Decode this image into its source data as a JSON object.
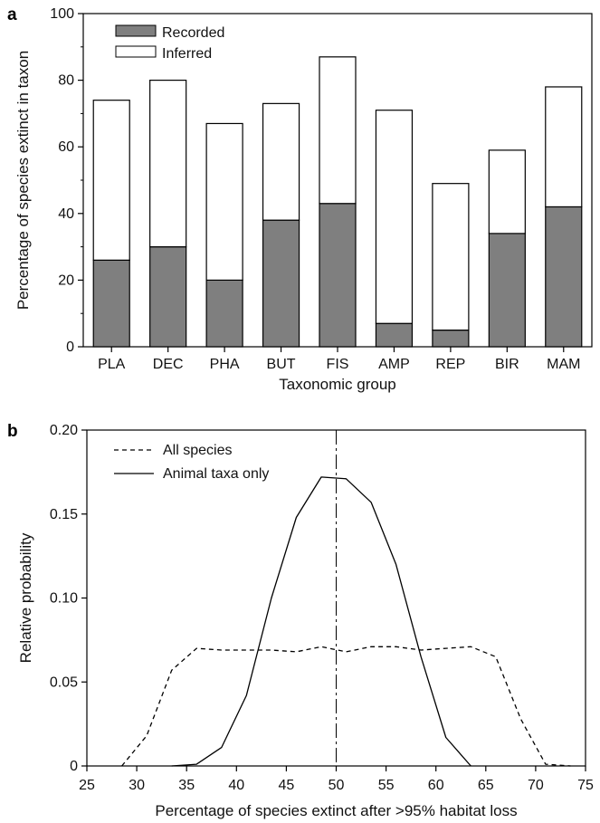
{
  "chart_data": [
    {
      "panel_label": "a",
      "type": "bar",
      "stacked": true,
      "categories": [
        "PLA",
        "DEC",
        "PHA",
        "BUT",
        "FIS",
        "AMP",
        "REP",
        "BIR",
        "MAM"
      ],
      "series": [
        {
          "name": "Recorded",
          "values": [
            26,
            30,
            20,
            38,
            43,
            7,
            5,
            34,
            42
          ],
          "color": "#7f7f7f"
        },
        {
          "name": "Inferred",
          "values": [
            48,
            50,
            47,
            35,
            44,
            64,
            44,
            25,
            36
          ],
          "color": "#ffffff"
        }
      ],
      "totals": [
        74,
        80,
        67,
        73,
        87,
        71,
        49,
        59,
        78
      ],
      "xlabel": "Taxonomic group",
      "ylabel": "Percentage of species extinct in taxon",
      "ylim": [
        0,
        100
      ],
      "yticks": [
        0,
        20,
        40,
        60,
        80,
        100
      ],
      "legend_position": "top-left",
      "grid": false
    },
    {
      "panel_label": "b",
      "type": "line",
      "series": [
        {
          "name": "All species",
          "style": "dashed",
          "x": [
            28.5,
            31,
            33.5,
            36,
            38.5,
            41,
            43.5,
            46,
            48.5,
            51,
            53.5,
            56,
            58.5,
            61,
            63.5,
            66,
            68.5,
            71,
            73.5
          ],
          "y": [
            0.0,
            0.018,
            0.057,
            0.07,
            0.069,
            0.069,
            0.069,
            0.068,
            0.071,
            0.068,
            0.071,
            0.071,
            0.069,
            0.07,
            0.071,
            0.065,
            0.028,
            0.001,
            0.0
          ]
        },
        {
          "name": "Animal taxa only",
          "style": "solid",
          "x": [
            33.5,
            36,
            38.5,
            41,
            43.5,
            46,
            48.5,
            51,
            53.5,
            56,
            58.5,
            61,
            63.5
          ],
          "y": [
            0.0,
            0.001,
            0.011,
            0.042,
            0.1,
            0.148,
            0.172,
            0.171,
            0.157,
            0.12,
            0.065,
            0.017,
            0.0
          ]
        }
      ],
      "reference_line": {
        "x": 50,
        "style": "long-dash"
      },
      "xlabel": "Percentage of species extinct after >95% habitat loss",
      "ylabel": "Relative probability",
      "xlim": [
        25,
        75
      ],
      "ylim": [
        0,
        0.2
      ],
      "xticks": [
        "25",
        "30",
        "35",
        "40",
        "45",
        "50",
        "55",
        "60",
        "65",
        "70",
        "75"
      ],
      "yticks": [
        "0",
        "0.05",
        "0.10",
        "0.15",
        "0.20"
      ],
      "legend_position": "top-left",
      "grid": false
    }
  ]
}
